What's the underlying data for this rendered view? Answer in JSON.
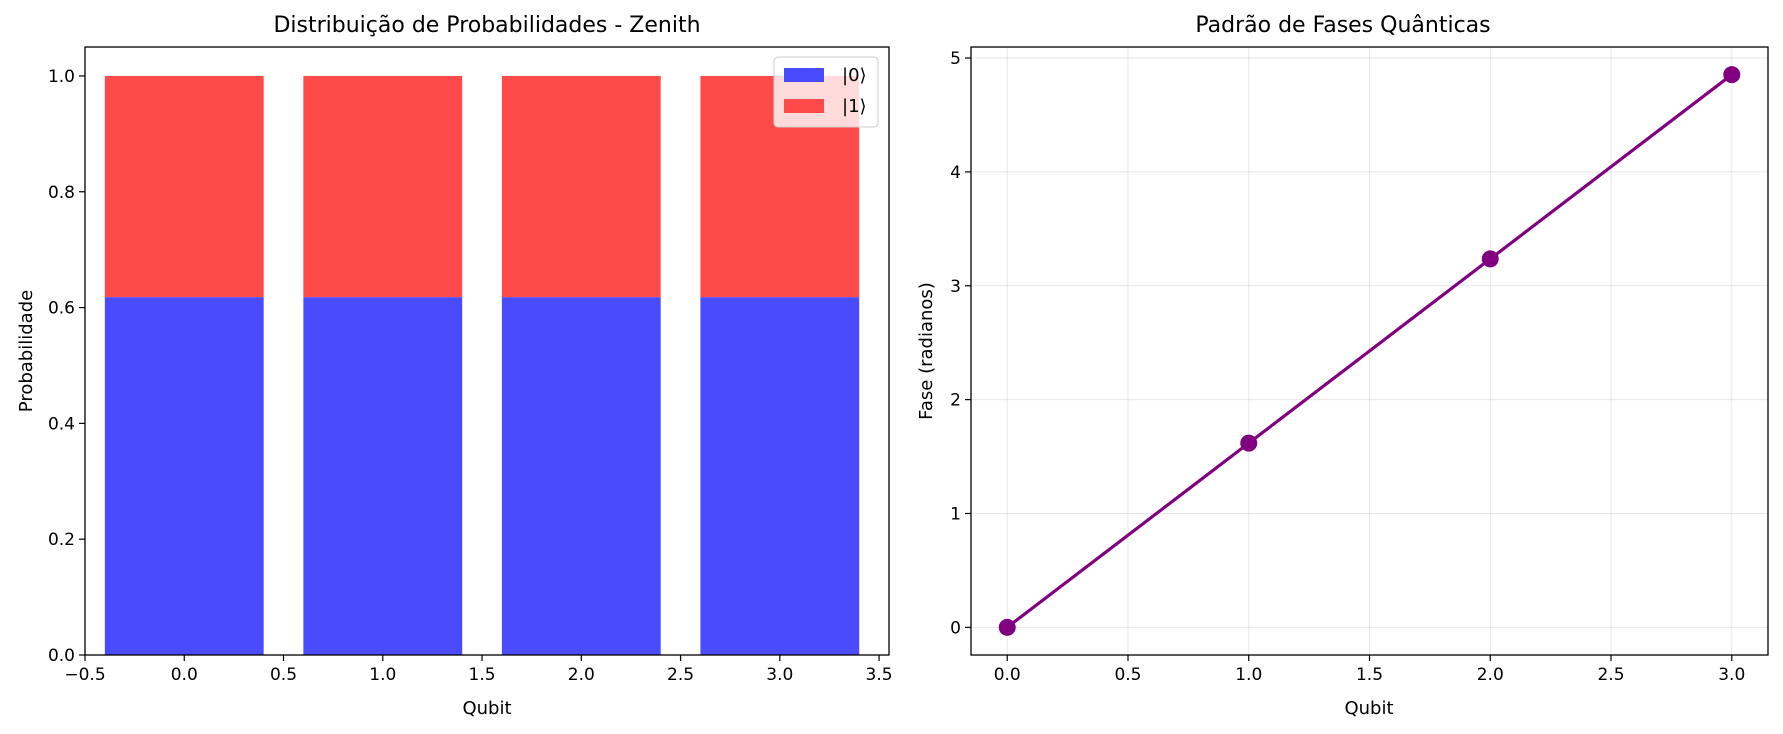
{
  "chart_data": [
    {
      "type": "bar",
      "stacked": true,
      "title": "Distribuição de Probabilidades - Zenith",
      "xlabel": "Qubit",
      "ylabel": "Probabilidade",
      "x": [
        0,
        1,
        2,
        3
      ],
      "series": [
        {
          "name": "|0⟩",
          "values": [
            0.618,
            0.618,
            0.618,
            0.618
          ],
          "color": "#4a4aff"
        },
        {
          "name": "|1⟩",
          "values": [
            0.382,
            0.382,
            0.382,
            0.382
          ],
          "color": "#ff4a4a"
        }
      ],
      "xlim": [
        -0.5,
        3.55
      ],
      "ylim": [
        0,
        1.05
      ],
      "xticks": [
        -0.5,
        0.0,
        0.5,
        1.0,
        1.5,
        2.0,
        2.5,
        3.0,
        3.5
      ],
      "xtick_labels": [
        "−0.5",
        "0.0",
        "0.5",
        "1.0",
        "1.5",
        "2.0",
        "2.5",
        "3.0",
        "3.5"
      ],
      "yticks": [
        0.0,
        0.2,
        0.4,
        0.6,
        0.8,
        1.0
      ],
      "ytick_labels": [
        "0.0",
        "0.2",
        "0.4",
        "0.6",
        "0.8",
        "1.0"
      ],
      "grid": false,
      "legend": "top-right"
    },
    {
      "type": "line",
      "title": "Padrão de Fases Quânticas",
      "xlabel": "Qubit",
      "ylabel": "Fase (radianos)",
      "x": [
        0,
        1,
        2,
        3
      ],
      "series": [
        {
          "values": [
            0.0,
            1.618,
            3.236,
            4.854
          ],
          "color": "#800080"
        }
      ],
      "xlim": [
        -0.15,
        3.15
      ],
      "ylim": [
        -0.243,
        5.097
      ],
      "xticks": [
        0.0,
        0.5,
        1.0,
        1.5,
        2.0,
        2.5,
        3.0
      ],
      "xtick_labels": [
        "0.0",
        "0.5",
        "1.0",
        "1.5",
        "2.0",
        "2.5",
        "3.0"
      ],
      "yticks": [
        0,
        1,
        2,
        3,
        4,
        5
      ],
      "ytick_labels": [
        "0",
        "1",
        "2",
        "3",
        "4",
        "5"
      ],
      "grid": true
    }
  ]
}
